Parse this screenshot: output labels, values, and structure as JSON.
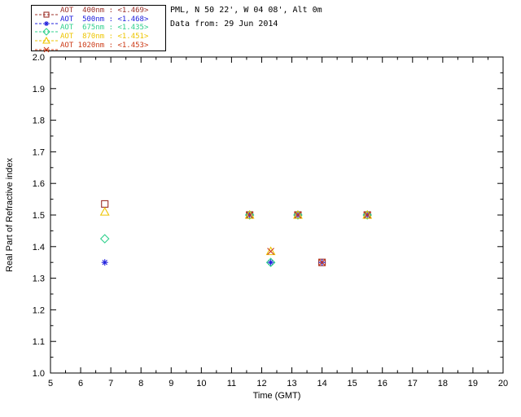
{
  "header": {
    "line1": "PML, N 50 22', W 04 08', Alt 0m",
    "line2": "Data from: 29 Jun 2014"
  },
  "legend": {
    "items": [
      {
        "label": "AOT  400nm : <1.469>",
        "wavelength": "400nm",
        "mean_value": "<1.469>",
        "color": "#9c3028",
        "marker": "square"
      },
      {
        "label": "AOT  500nm : <1.468>",
        "wavelength": "500nm",
        "mean_value": "<1.468>",
        "color": "#2020dd",
        "marker": "asterisk"
      },
      {
        "label": "AOT  675nm : <1.435>",
        "wavelength": "675nm",
        "mean_value": "<1.435>",
        "color": "#2fd08c",
        "marker": "diamond"
      },
      {
        "label": "AOT  870nm : <1.451>",
        "wavelength": "870nm",
        "mean_value": "<1.451>",
        "color": "#edc500",
        "marker": "triangle"
      },
      {
        "label": "AOT 1020nm : <1.453>",
        "wavelength": "1020nm",
        "mean_value": "<1.453>",
        "color": "#cc3a16",
        "marker": "x"
      }
    ]
  },
  "chart_data": {
    "type": "scatter",
    "title": "",
    "xlabel": "Time (GMT)",
    "ylabel": "Real Part of Refractive index",
    "xlim": [
      5,
      20
    ],
    "ylim": [
      1.0,
      2.0
    ],
    "grid": false,
    "legend_position": "outside-top-left",
    "xticks": [
      5,
      6,
      7,
      8,
      9,
      10,
      11,
      12,
      13,
      14,
      15,
      16,
      17,
      18,
      19,
      20
    ],
    "xtick_labels": [
      "5",
      "6",
      "7",
      "8",
      "9",
      "10",
      "11",
      "12",
      "13",
      "14",
      "15",
      "16",
      "17",
      "18",
      "19",
      "20"
    ],
    "yticks": [
      1.0,
      1.1,
      1.2,
      1.3,
      1.4,
      1.5,
      1.6,
      1.7,
      1.8,
      1.9,
      2.0
    ],
    "ytick_labels": [
      "1.0",
      "1.1",
      "1.2",
      "1.3",
      "1.4",
      "1.5",
      "1.6",
      "1.7",
      "1.8",
      "1.9",
      "2.0"
    ],
    "series": [
      {
        "name": "AOT 400nm",
        "color": "#9c3028",
        "marker": "square",
        "points": [
          [
            6.8,
            1.535
          ],
          [
            11.6,
            1.5
          ],
          [
            13.2,
            1.5
          ],
          [
            14.0,
            1.35
          ],
          [
            15.5,
            1.5
          ]
        ]
      },
      {
        "name": "AOT 500nm",
        "color": "#2020dd",
        "marker": "asterisk",
        "points": [
          [
            6.8,
            1.35
          ],
          [
            11.6,
            1.5
          ],
          [
            12.3,
            1.35
          ],
          [
            13.2,
            1.5
          ],
          [
            14.0,
            1.35
          ],
          [
            15.5,
            1.5
          ]
        ]
      },
      {
        "name": "AOT 675nm",
        "color": "#2fd08c",
        "marker": "diamond",
        "points": [
          [
            6.8,
            1.425
          ],
          [
            11.6,
            1.5
          ],
          [
            12.3,
            1.35
          ],
          [
            13.2,
            1.5
          ],
          [
            15.5,
            1.5
          ]
        ]
      },
      {
        "name": "AOT 870nm",
        "color": "#edc500",
        "marker": "triangle",
        "points": [
          [
            6.8,
            1.51
          ],
          [
            11.6,
            1.5
          ],
          [
            12.3,
            1.385
          ],
          [
            13.2,
            1.5
          ],
          [
            15.5,
            1.5
          ]
        ]
      },
      {
        "name": "AOT 1020nm",
        "color": "#cc3a16",
        "marker": "x",
        "points": [
          [
            11.6,
            1.5
          ],
          [
            12.3,
            1.385
          ],
          [
            13.2,
            1.5
          ],
          [
            14.0,
            1.35
          ],
          [
            15.5,
            1.5
          ]
        ]
      }
    ]
  },
  "colors": {
    "axis": "#000000",
    "background": "#ffffff",
    "text": "#000000"
  }
}
